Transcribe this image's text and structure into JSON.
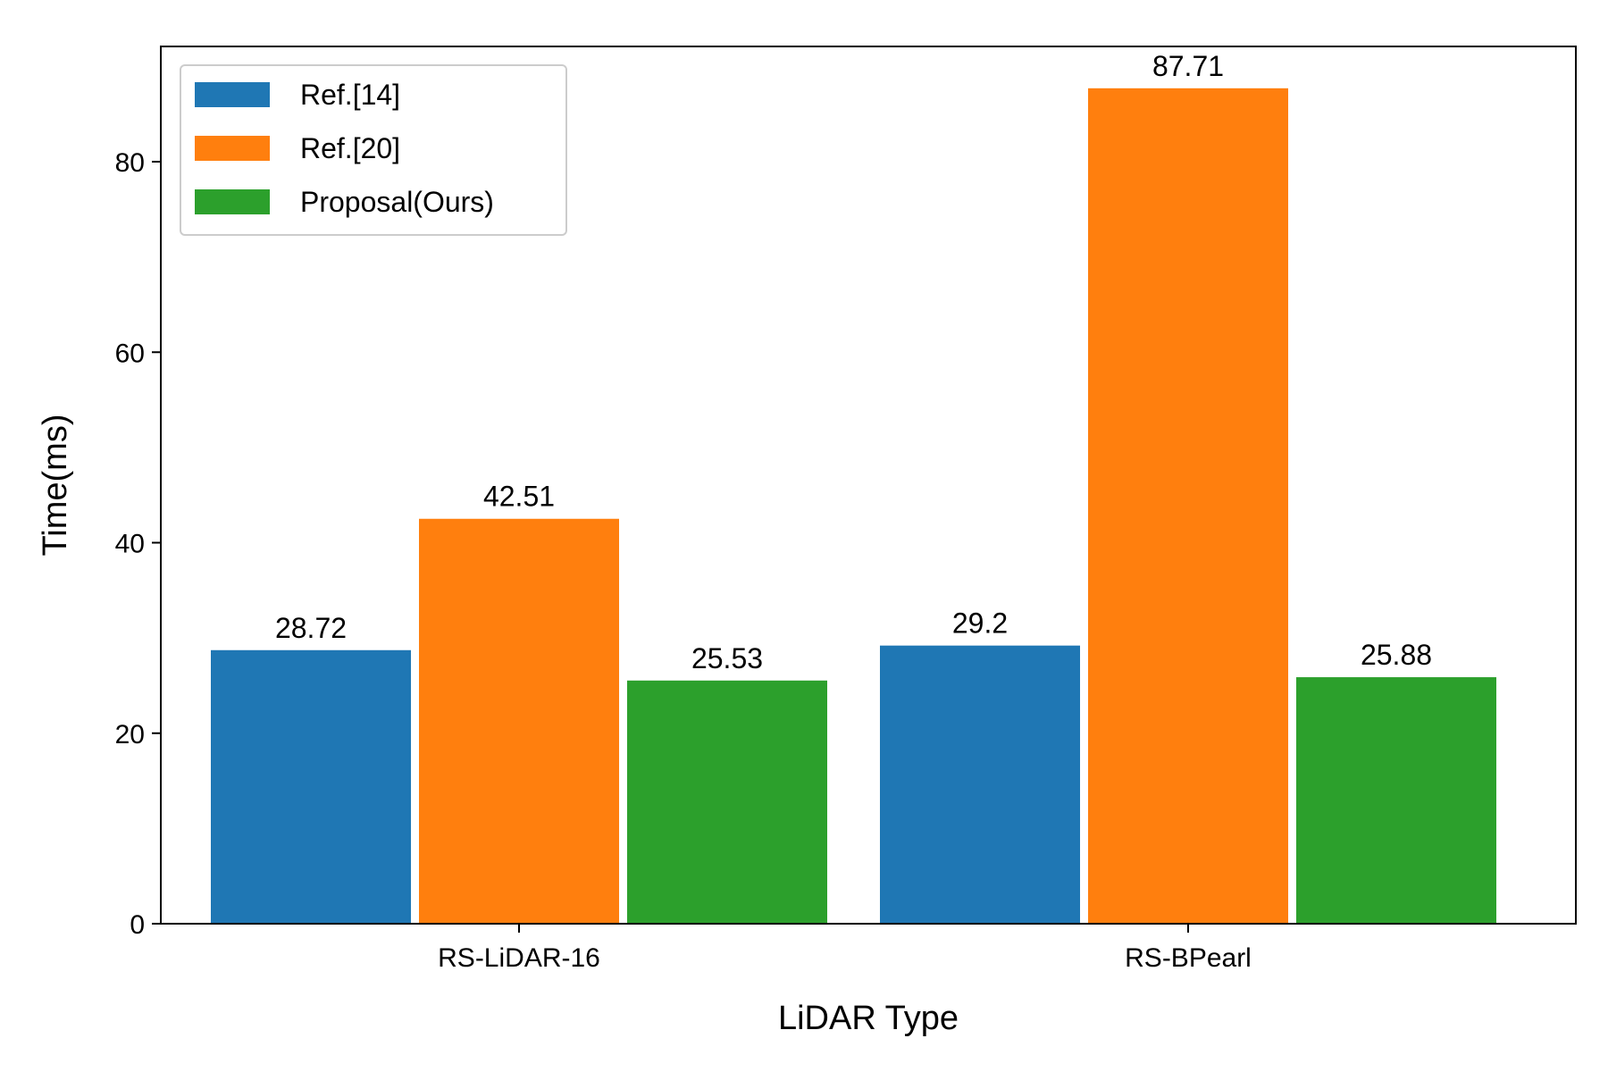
{
  "chart_data": {
    "type": "bar",
    "xlabel": "LiDAR Type",
    "ylabel": "Time(ms)",
    "categories": [
      "RS-LiDAR-16",
      "RS-BPearl"
    ],
    "series": [
      {
        "name": "Ref.[14]",
        "color": "#1f77b4",
        "values": [
          28.72,
          29.2
        ]
      },
      {
        "name": "Ref.[20]",
        "color": "#ff7f0e",
        "values": [
          42.51,
          87.71
        ]
      },
      {
        "name": "Proposal(Ours)",
        "color": "#2ca02c",
        "values": [
          25.53,
          25.88
        ]
      }
    ],
    "ylim": [
      0,
      92.1
    ],
    "yticks": [
      0,
      20,
      40,
      60,
      80
    ],
    "legend": "top-left",
    "grid": false
  }
}
